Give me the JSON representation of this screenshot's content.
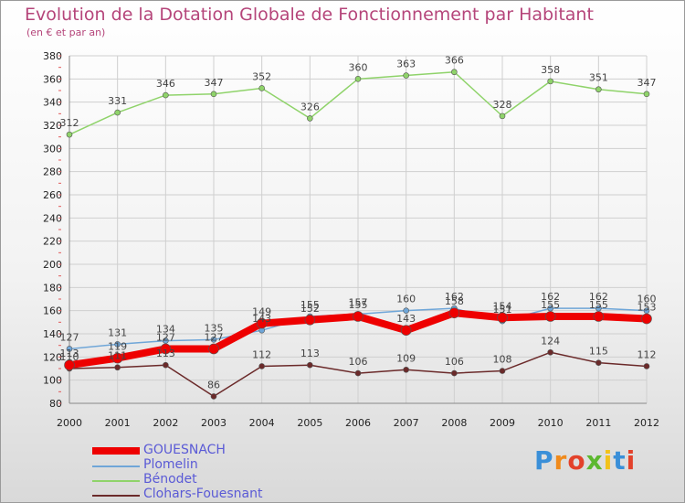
{
  "title": "Evolution de la Dotation Globale de Fonctionnement par Habitant",
  "subtitle": "(en € et par an)",
  "logo_text": "Proxiti",
  "chart_data": {
    "type": "line",
    "title": "Evolution de la Dotation Globale de Fonctionnement par Habitant",
    "subtitle": "(en € et par an)",
    "x": [
      "2000",
      "2001",
      "2002",
      "2003",
      "2004",
      "2005",
      "2006",
      "2007",
      "2008",
      "2009",
      "2010",
      "2011",
      "2012"
    ],
    "ylim": [
      80,
      380
    ],
    "yticks": [
      80,
      100,
      120,
      140,
      160,
      180,
      200,
      220,
      240,
      260,
      280,
      300,
      320,
      340,
      360,
      380
    ],
    "grid": true,
    "legend": "bottom-left",
    "series": [
      {
        "name": "Bénodet",
        "color": "#8fd36a",
        "values": [
          312,
          331,
          346,
          347,
          352,
          326,
          360,
          363,
          366,
          328,
          358,
          351,
          347
        ]
      },
      {
        "name": "Plomelin",
        "color": "#6fa6d8",
        "values": [
          127,
          131,
          134,
          135,
          143,
          155,
          157,
          160,
          162,
          151,
          162,
          162,
          160
        ]
      },
      {
        "name": "Clohars-Fouesnant",
        "color": "#6b2a2a",
        "values": [
          110,
          111,
          113,
          86,
          112,
          113,
          106,
          109,
          106,
          108,
          124,
          115,
          112
        ]
      },
      {
        "name": "GOUESNACH",
        "color": "#ee0000",
        "values": [
          113,
          119,
          127,
          127,
          149,
          152,
          155,
          143,
          158,
          154,
          155,
          155,
          153
        ]
      }
    ]
  },
  "legend": [
    {
      "label": "GOUESNACH",
      "color": "#ee0000"
    },
    {
      "label": "Plomelin",
      "color": "#6fa6d8"
    },
    {
      "label": "Bénodet",
      "color": "#8fd36a"
    },
    {
      "label": "Clohars-Fouesnant",
      "color": "#6b2a2a"
    }
  ]
}
